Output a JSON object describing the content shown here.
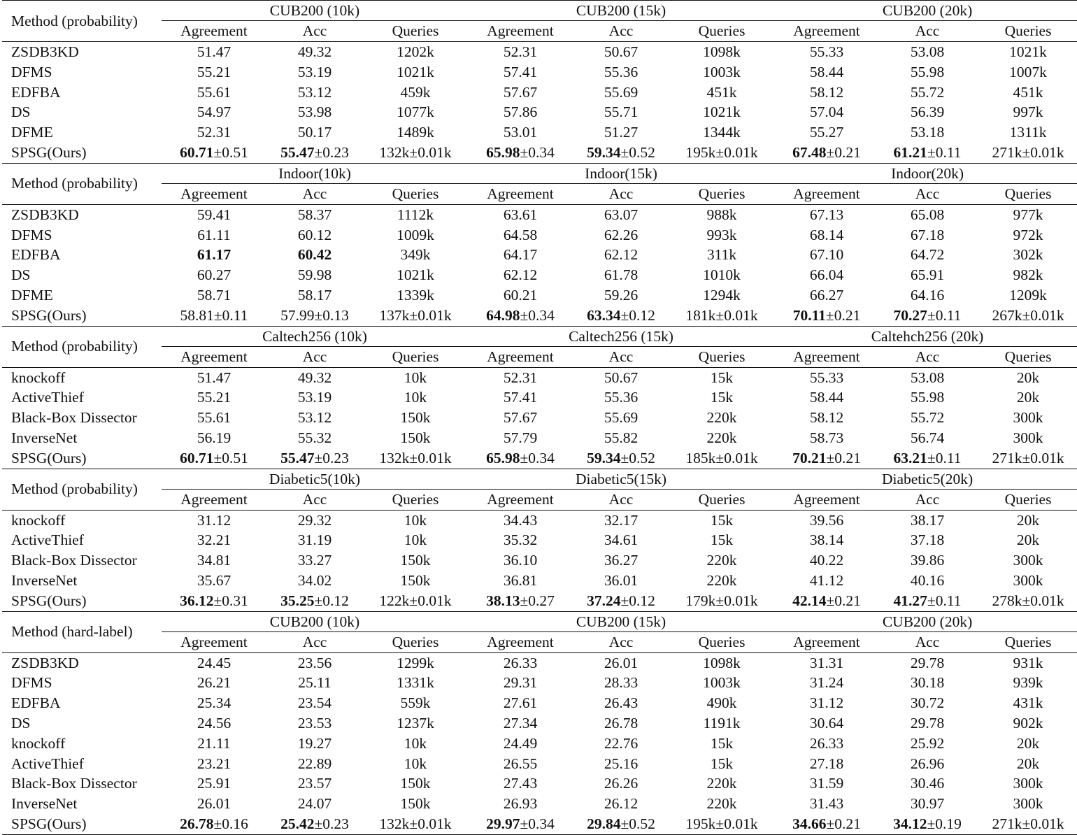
{
  "columns": {
    "agreement": "Agreement",
    "acc": "Acc",
    "queries": "Queries"
  },
  "pm_symbol": "±",
  "blocks": [
    {
      "method_header": "Method (probability)",
      "datasets": [
        "CUB200 (10k)",
        "CUB200 (15k)",
        "CUB200 (20k)"
      ],
      "rows": [
        {
          "method": "ZSDB3KD",
          "cells": [
            "51.47",
            "49.32",
            "1202k",
            "52.31",
            "50.67",
            "1098k",
            "55.33",
            "53.08",
            "1021k"
          ]
        },
        {
          "method": "DFMS",
          "cells": [
            "55.21",
            "53.19",
            "1021k",
            "57.41",
            "55.36",
            "1003k",
            "58.44",
            "55.98",
            "1007k"
          ]
        },
        {
          "method": "EDFBA",
          "cells": [
            "55.61",
            "53.12",
            "459k",
            "57.67",
            "55.69",
            "451k",
            "58.12",
            "55.72",
            "451k"
          ]
        },
        {
          "method": "DS",
          "cells": [
            "54.97",
            "53.98",
            "1077k",
            "57.86",
            "55.71",
            "1021k",
            "57.04",
            "56.39",
            "997k"
          ]
        },
        {
          "method": "DFME",
          "cells": [
            "52.31",
            "50.17",
            "1489k",
            "53.01",
            "51.27",
            "1344k",
            "55.27",
            "53.18",
            "1311k"
          ]
        },
        {
          "method": "SPSG(Ours)",
          "cells": [
            {
              "bold": "60.71",
              "rest": "±0.51"
            },
            {
              "bold": "55.47",
              "rest": "±0.23"
            },
            {
              "bold": "",
              "rest": "132k±0.01k"
            },
            {
              "bold": "65.98",
              "rest": "±0.34"
            },
            {
              "bold": "59.34",
              "rest": "±0.52"
            },
            {
              "bold": "",
              "rest": "195k±0.01k"
            },
            {
              "bold": "67.48",
              "rest": "±0.21"
            },
            {
              "bold": "61.21",
              "rest": "±0.11"
            },
            {
              "bold": "",
              "rest": "271k±0.01k"
            }
          ]
        }
      ]
    },
    {
      "method_header": "Method (probability)",
      "datasets": [
        "Indoor(10k)",
        "Indoor(15k)",
        "Indoor(20k)"
      ],
      "rows": [
        {
          "method": "ZSDB3KD",
          "cells": [
            "59.41",
            "58.37",
            "1112k",
            "63.61",
            "63.07",
            "988k",
            "67.13",
            "65.08",
            "977k"
          ]
        },
        {
          "method": "DFMS",
          "cells": [
            "61.11",
            "60.12",
            "1009k",
            "64.58",
            "62.26",
            "993k",
            "68.14",
            "67.18",
            "972k"
          ]
        },
        {
          "method": "EDFBA",
          "cells": [
            {
              "bold": "61.17",
              "rest": ""
            },
            {
              "bold": "60.42",
              "rest": ""
            },
            "349k",
            "64.17",
            "62.12",
            "311k",
            "67.10",
            "64.72",
            "302k"
          ]
        },
        {
          "method": "DS",
          "cells": [
            "60.27",
            "59.98",
            "1021k",
            "62.12",
            "61.78",
            "1010k",
            "66.04",
            "65.91",
            "982k"
          ]
        },
        {
          "method": "DFME",
          "cells": [
            "58.71",
            "58.17",
            "1339k",
            "60.21",
            "59.26",
            "1294k",
            "66.27",
            "64.16",
            "1209k"
          ]
        },
        {
          "method": "SPSG(Ours)",
          "cells": [
            {
              "bold": "",
              "rest": "58.81±0.11"
            },
            {
              "bold": "",
              "rest": "57.99±0.13"
            },
            {
              "bold": "",
              "rest": "137k±0.01k"
            },
            {
              "bold": "64.98",
              "rest": "±0.34"
            },
            {
              "bold": "63.34",
              "rest": "±0.12"
            },
            {
              "bold": "",
              "rest": "181k±0.01k"
            },
            {
              "bold": "70.11",
              "rest": "±0.21"
            },
            {
              "bold": "70.27",
              "rest": "±0.11"
            },
            {
              "bold": "",
              "rest": "267k±0.01k"
            }
          ]
        }
      ]
    },
    {
      "method_header": "Method (probability)",
      "datasets": [
        "Caltech256 (10k)",
        "Caltech256 (15k)",
        "Caltehch256 (20k)"
      ],
      "rows": [
        {
          "method": "knockoff",
          "cells": [
            "51.47",
            "49.32",
            "10k",
            "52.31",
            "50.67",
            "15k",
            "55.33",
            "53.08",
            "20k"
          ]
        },
        {
          "method": "ActiveThief",
          "cells": [
            "55.21",
            "53.19",
            "10k",
            "57.41",
            "55.36",
            "15k",
            "58.44",
            "55.98",
            "20k"
          ]
        },
        {
          "method": "Black-Box Dissector",
          "cells": [
            "55.61",
            "53.12",
            "150k",
            "57.67",
            "55.69",
            "220k",
            "58.12",
            "55.72",
            "300k"
          ]
        },
        {
          "method": "InverseNet",
          "cells": [
            "56.19",
            "55.32",
            "150k",
            "57.79",
            "55.82",
            "220k",
            "58.73",
            "56.74",
            "300k"
          ]
        },
        {
          "method": "SPSG(Ours)",
          "cells": [
            {
              "bold": "60.71",
              "rest": "±0.51"
            },
            {
              "bold": "55.47",
              "rest": "±0.23"
            },
            {
              "bold": "",
              "rest": "132k±0.01k"
            },
            {
              "bold": "65.98",
              "rest": "±0.34"
            },
            {
              "bold": "59.34",
              "rest": "±0.52"
            },
            {
              "bold": "",
              "rest": "185k±0.01k"
            },
            {
              "bold": "70.21",
              "rest": "±0.21"
            },
            {
              "bold": "63.21",
              "rest": "±0.11"
            },
            {
              "bold": "",
              "rest": "271k±0.01k"
            }
          ]
        }
      ]
    },
    {
      "method_header": "Method (probability)",
      "datasets": [
        "Diabetic5(10k)",
        "Diabetic5(15k)",
        "Diabetic5(20k)"
      ],
      "rows": [
        {
          "method": "knockoff",
          "cells": [
            "31.12",
            "29.32",
            "10k",
            "34.43",
            "32.17",
            "15k",
            "39.56",
            "38.17",
            "20k"
          ]
        },
        {
          "method": "ActiveThief",
          "cells": [
            "32.21",
            "31.19",
            "10k",
            "35.32",
            "34.61",
            "15k",
            "38.14",
            "37.18",
            "20k"
          ]
        },
        {
          "method": "Black-Box Dissector",
          "cells": [
            "34.81",
            "33.27",
            "150k",
            "36.10",
            "36.27",
            "220k",
            "40.22",
            "39.86",
            "300k"
          ]
        },
        {
          "method": "InverseNet",
          "cells": [
            "35.67",
            "34.02",
            "150k",
            "36.81",
            "36.01",
            "220k",
            "41.12",
            "40.16",
            "300k"
          ]
        },
        {
          "method": "SPSG(Ours)",
          "cells": [
            {
              "bold": "36.12",
              "rest": "±0.31"
            },
            {
              "bold": "35.25",
              "rest": "±0.12"
            },
            {
              "bold": "",
              "rest": "122k±0.01k"
            },
            {
              "bold": "38.13",
              "rest": "±0.27"
            },
            {
              "bold": "37.24",
              "rest": "±0.12"
            },
            {
              "bold": "",
              "rest": "179k±0.01k"
            },
            {
              "bold": "42.14",
              "rest": "±0.21"
            },
            {
              "bold": "41.27",
              "rest": "±0.11"
            },
            {
              "bold": "",
              "rest": "278k±0.01k"
            }
          ]
        }
      ]
    },
    {
      "method_header": "Method (hard-label)",
      "datasets": [
        "CUB200 (10k)",
        "CUB200 (15k)",
        "CUB200 (20k)"
      ],
      "rows": [
        {
          "method": "ZSDB3KD",
          "cells": [
            "24.45",
            "23.56",
            "1299k",
            "26.33",
            "26.01",
            "1098k",
            "31.31",
            "29.78",
            "931k"
          ]
        },
        {
          "method": "DFMS",
          "cells": [
            "26.21",
            "25.11",
            "1331k",
            "29.31",
            "28.33",
            "1003k",
            "31.24",
            "30.18",
            "939k"
          ]
        },
        {
          "method": "EDFBA",
          "cells": [
            "25.34",
            "23.54",
            "559k",
            "27.61",
            "26.43",
            "490k",
            "31.12",
            "30.72",
            "431k"
          ]
        },
        {
          "method": "DS",
          "cells": [
            "24.56",
            "23.53",
            "1237k",
            "27.34",
            "26.78",
            "1191k",
            "30.64",
            "29.78",
            "902k"
          ]
        },
        {
          "method": "knockoff",
          "cells": [
            "21.11",
            "19.27",
            "10k",
            "24.49",
            "22.76",
            "15k",
            "26.33",
            "25.92",
            "20k"
          ]
        },
        {
          "method": "ActiveThief",
          "cells": [
            "23.21",
            "22.89",
            "10k",
            "26.55",
            "25.16",
            "15k",
            "27.18",
            "26.96",
            "20k"
          ]
        },
        {
          "method": "Black-Box Dissector",
          "cells": [
            "25.91",
            "23.57",
            "150k",
            "27.43",
            "26.26",
            "220k",
            "31.59",
            "30.46",
            "300k"
          ]
        },
        {
          "method": "InverseNet",
          "cells": [
            "26.01",
            "24.07",
            "150k",
            "26.93",
            "26.12",
            "220k",
            "31.43",
            "30.97",
            "300k"
          ]
        },
        {
          "method": "SPSG(Ours)",
          "cells": [
            {
              "bold": "26.78",
              "rest": "±0.16"
            },
            {
              "bold": "25.42",
              "rest": "±0.23"
            },
            {
              "bold": "",
              "rest": "132k±0.01k"
            },
            {
              "bold": "29.97",
              "rest": "±0.34"
            },
            {
              "bold": "29.84",
              "rest": "±0.52"
            },
            {
              "bold": "",
              "rest": "195k±0.01k"
            },
            {
              "bold": "34.66",
              "rest": "±0.21"
            },
            {
              "bold": "34.12",
              "rest": "±0.19"
            },
            {
              "bold": "",
              "rest": "271k±0.01k"
            }
          ]
        }
      ]
    }
  ]
}
